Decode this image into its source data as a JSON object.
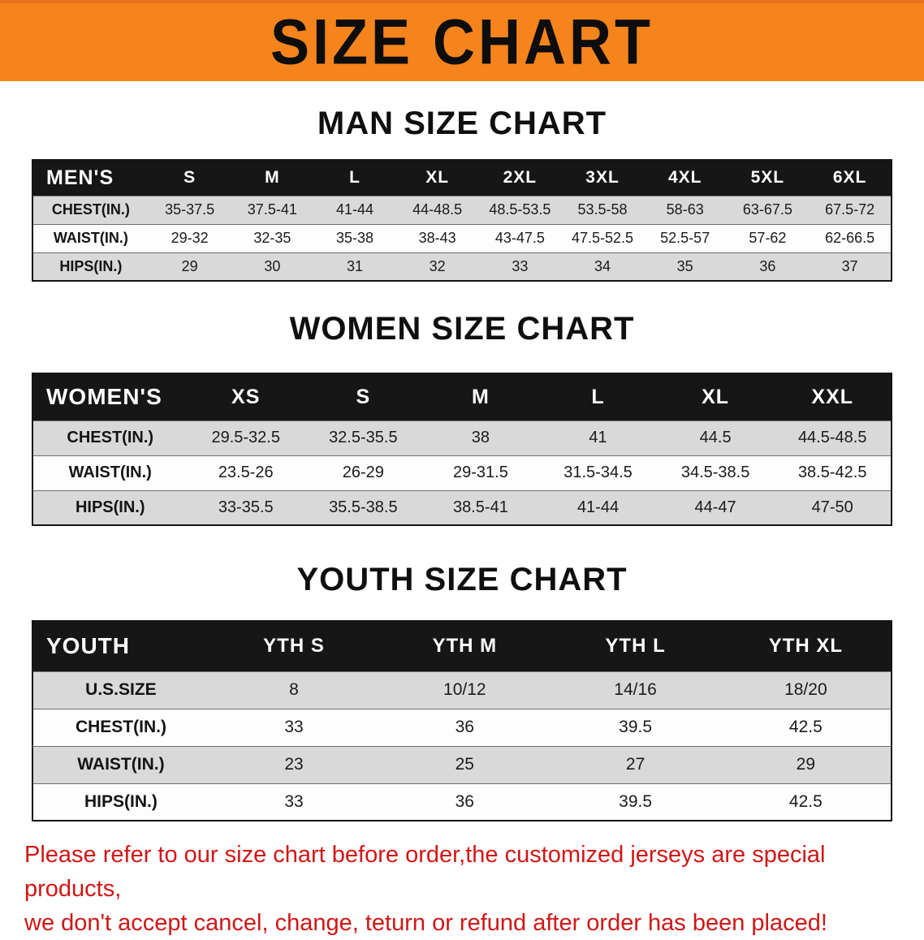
{
  "banner": {
    "title": "SIZE CHART",
    "bg_color": "#F5841C",
    "text_color": "#0D0D0D"
  },
  "sections": [
    {
      "heading": "MAN SIZE CHART",
      "table": {
        "title": "MEN'S",
        "columns": [
          "S",
          "M",
          "L",
          "XL",
          "2XL",
          "3XL",
          "4XL",
          "5XL",
          "6XL"
        ],
        "rows": [
          {
            "label": "CHEST(IN.)",
            "values": [
              "35-37.5",
              "37.5-41",
              "41-44",
              "44-48.5",
              "48.5-53.5",
              "53.5-58",
              "58-63",
              "63-67.5",
              "67.5-72"
            ]
          },
          {
            "label": "WAIST(IN.)",
            "values": [
              "29-32",
              "32-35",
              "35-38",
              "38-43",
              "43-47.5",
              "47.5-52.5",
              "52.5-57",
              "57-62",
              "62-66.5"
            ]
          },
          {
            "label": "HIPS(IN.)",
            "values": [
              "29",
              "30",
              "31",
              "32",
              "33",
              "34",
              "35",
              "36",
              "37"
            ]
          }
        ]
      }
    },
    {
      "heading": "WOMEN SIZE CHART",
      "table": {
        "title": "WOMEN'S",
        "columns": [
          "XS",
          "S",
          "M",
          "L",
          "XL",
          "XXL"
        ],
        "rows": [
          {
            "label": "CHEST(IN.)",
            "values": [
              "29.5-32.5",
              "32.5-35.5",
              "38",
              "41",
              "44.5",
              "44.5-48.5"
            ]
          },
          {
            "label": "WAIST(IN.)",
            "values": [
              "23.5-26",
              "26-29",
              "29-31.5",
              "31.5-34.5",
              "34.5-38.5",
              "38.5-42.5"
            ]
          },
          {
            "label": "HIPS(IN.)",
            "values": [
              "33-35.5",
              "35.5-38.5",
              "38.5-41",
              "41-44",
              "44-47",
              "47-50"
            ]
          }
        ]
      }
    },
    {
      "heading": "YOUTH SIZE CHART",
      "table": {
        "title": "YOUTH",
        "columns": [
          "YTH S",
          "YTH M",
          "YTH L",
          "YTH XL"
        ],
        "rows": [
          {
            "label": "U.S.SIZE",
            "values": [
              "8",
              "10/12",
              "14/16",
              "18/20"
            ]
          },
          {
            "label": "CHEST(IN.)",
            "values": [
              "33",
              "36",
              "39.5",
              "42.5"
            ]
          },
          {
            "label": "WAIST(IN.)",
            "values": [
              "23",
              "25",
              "27",
              "29"
            ]
          },
          {
            "label": "HIPS(IN.)",
            "values": [
              "33",
              "36",
              "39.5",
              "42.5"
            ]
          }
        ]
      }
    }
  ],
  "notice": {
    "text_color": "#D11616",
    "line1": "Please refer to our size chart before order,the customized jerseys are special products,",
    "line2": "we don't accept cancel, change, teturn or refund after order has been placed!"
  }
}
